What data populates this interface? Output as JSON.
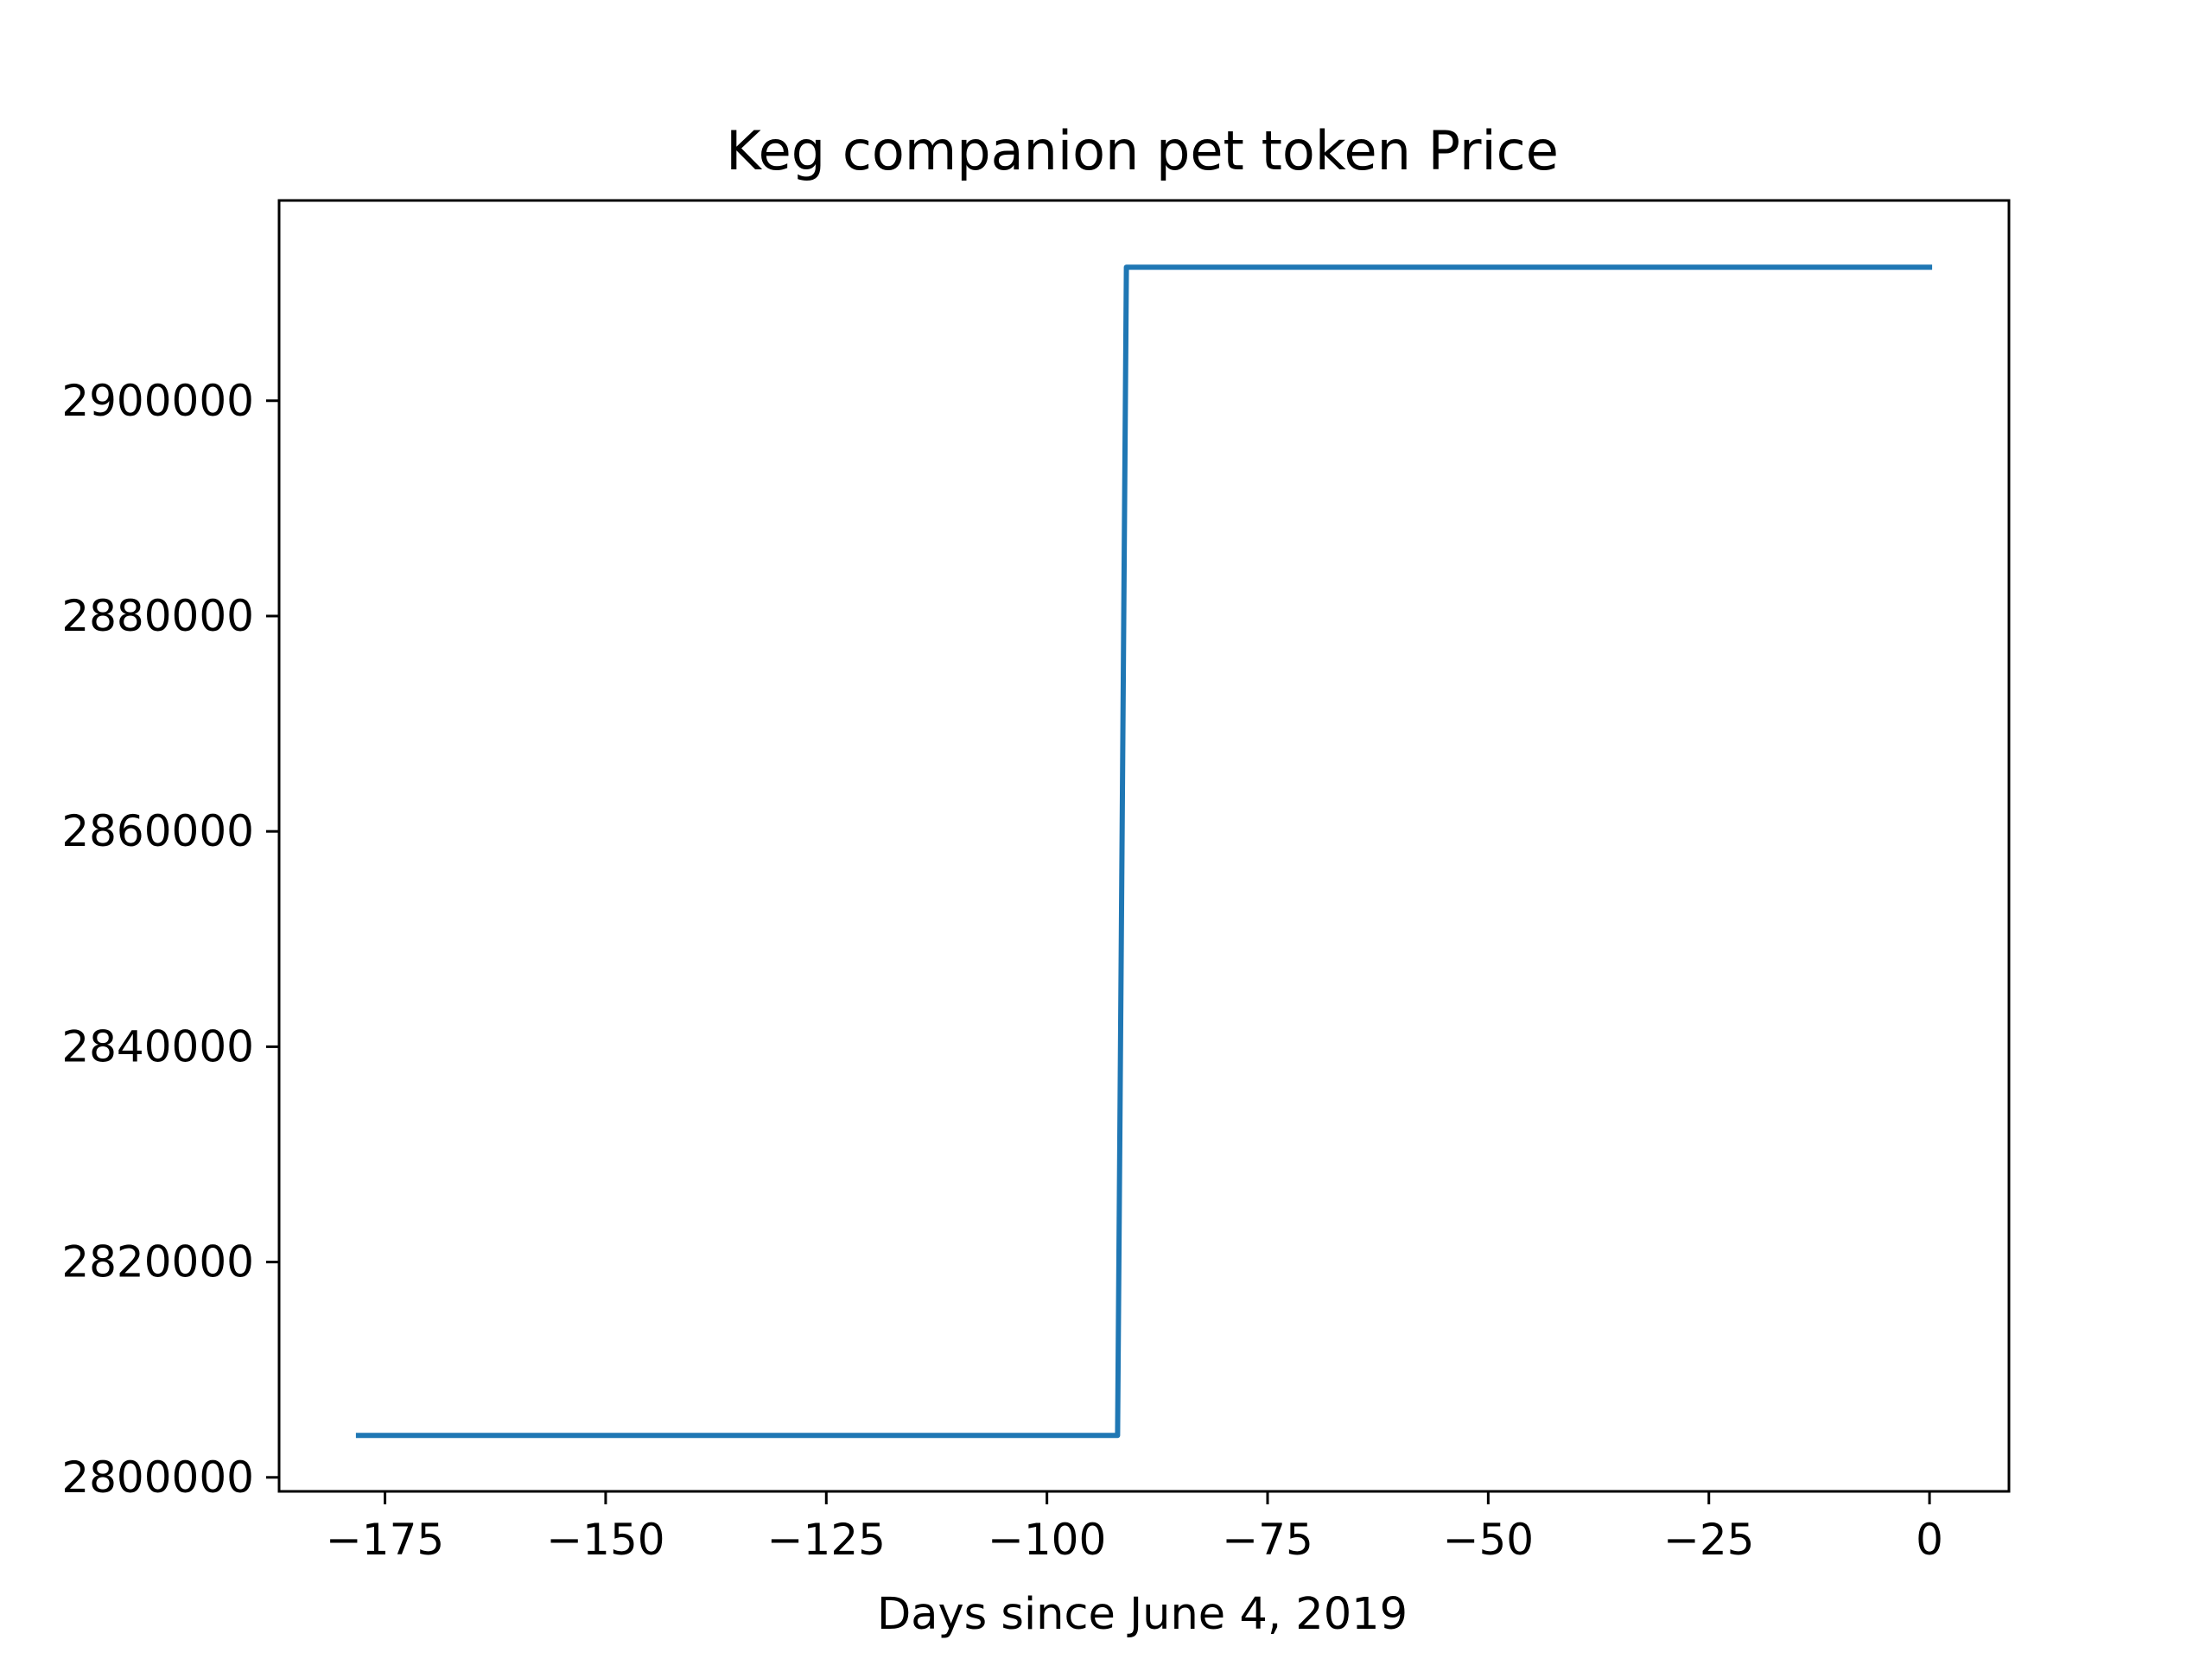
{
  "chart_data": {
    "type": "line",
    "title": "Keg companion pet token Price",
    "xlabel": "Days since June 4, 2019",
    "ylabel": "",
    "xlim": [
      -187,
      9
    ],
    "ylim": [
      2798700,
      2918600
    ],
    "x_ticks": [
      -175,
      -150,
      -125,
      -100,
      -75,
      -50,
      -25,
      0
    ],
    "y_ticks": [
      2800000,
      2820000,
      2840000,
      2860000,
      2880000,
      2900000
    ],
    "grid": false,
    "legend": "none",
    "series": [
      {
        "color": "#1f77b4",
        "x": [
          -178,
          -92,
          -91,
          0
        ],
        "y": [
          2803900,
          2803900,
          2912400,
          2912400
        ]
      }
    ]
  }
}
